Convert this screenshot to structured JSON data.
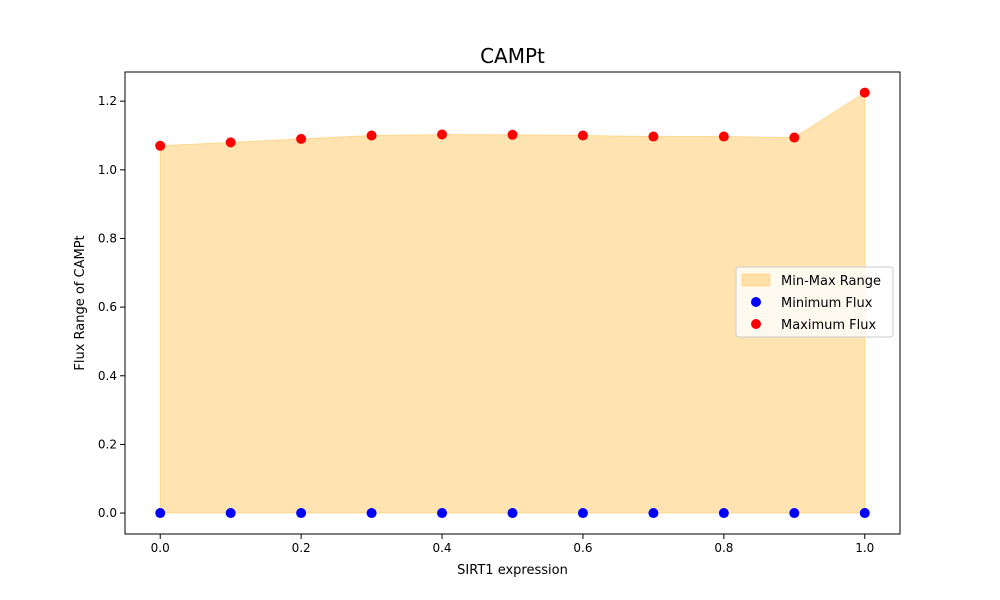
{
  "chart_data": {
    "type": "scatter",
    "title": "CAMPt",
    "xlabel": "SIRT1 expression",
    "ylabel": "Flux Range of CAMPt",
    "x": [
      0.0,
      0.1,
      0.2,
      0.3,
      0.4,
      0.5,
      0.6,
      0.7,
      0.8,
      0.9,
      1.0
    ],
    "xlim": [
      -0.05,
      1.05
    ],
    "ylim": [
      -0.061,
      1.285
    ],
    "xticks": [
      0.0,
      0.2,
      0.4,
      0.6,
      0.8,
      1.0
    ],
    "xtick_labels": [
      "0.0",
      "0.2",
      "0.4",
      "0.6",
      "0.8",
      "1.0"
    ],
    "yticks": [
      0.0,
      0.2,
      0.4,
      0.6,
      0.8,
      1.0,
      1.2
    ],
    "ytick_labels": [
      "0.0",
      "0.2",
      "0.4",
      "0.6",
      "0.8",
      "1.0",
      "1.2"
    ],
    "grid": false,
    "legend_position": "center-right",
    "series": [
      {
        "name": "Min-Max Range",
        "kind": "area",
        "color": "#FFA500",
        "opacity": 0.3
      },
      {
        "name": "Minimum Flux",
        "kind": "scatter",
        "color": "#0000FF",
        "values": [
          0,
          0,
          0,
          0,
          0,
          0,
          0,
          0,
          0,
          0,
          0
        ]
      },
      {
        "name": "Maximum Flux",
        "kind": "scatter",
        "color": "#FF0000",
        "values": [
          1.07,
          1.08,
          1.09,
          1.1,
          1.103,
          1.102,
          1.1,
          1.097,
          1.097,
          1.094,
          1.225
        ]
      }
    ]
  }
}
